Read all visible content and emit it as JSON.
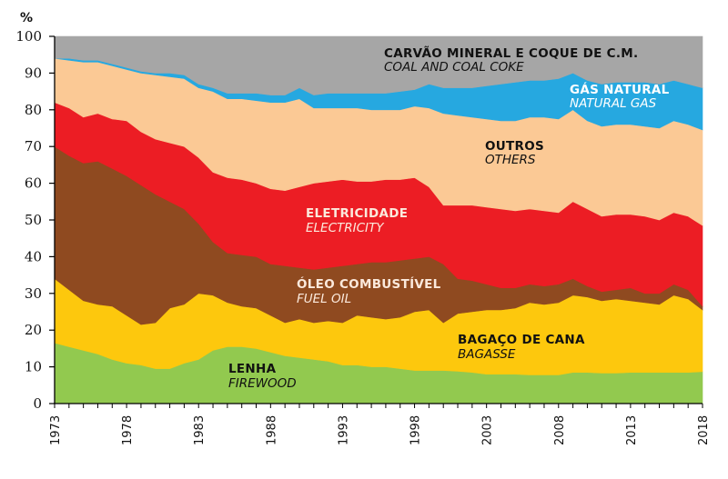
{
  "chart_data": {
    "type": "area",
    "stacked": true,
    "ylabel": "%",
    "ylim": [
      0,
      100
    ],
    "yticks": [
      0,
      10,
      20,
      30,
      40,
      50,
      60,
      70,
      80,
      90,
      100
    ],
    "xlim": [
      1973,
      2018
    ],
    "xticks": [
      1973,
      1978,
      1983,
      1988,
      1993,
      1998,
      2003,
      2008,
      2013,
      2018
    ],
    "x": [
      1973,
      1974,
      1975,
      1976,
      1977,
      1978,
      1979,
      1980,
      1981,
      1982,
      1983,
      1984,
      1985,
      1986,
      1987,
      1988,
      1989,
      1990,
      1991,
      1992,
      1993,
      1994,
      1995,
      1996,
      1997,
      1998,
      1999,
      2000,
      2001,
      2002,
      2003,
      2004,
      2005,
      2006,
      2007,
      2008,
      2009,
      2010,
      2011,
      2012,
      2013,
      2014,
      2015,
      2016,
      2017,
      2018
    ],
    "series": [
      {
        "name": "LENHA",
        "name_en": "FIREWOOD",
        "color": "#92c94f",
        "values": [
          16.5,
          15.5,
          14.5,
          13.5,
          12,
          11,
          10.5,
          9.5,
          9.5,
          11,
          12,
          14.5,
          15.5,
          15.5,
          15,
          14,
          13,
          12.5,
          12,
          11.5,
          10.5,
          10.5,
          10,
          10,
          9.5,
          9,
          9,
          9,
          8.8,
          8.5,
          8,
          8,
          8,
          7.8,
          7.8,
          7.8,
          8.5,
          8.5,
          8.3,
          8.3,
          8.5,
          8.5,
          8.5,
          8.5,
          8.5,
          8.7
        ]
      },
      {
        "name": "BAGAÇO DE CANA",
        "name_en": "BAGASSE",
        "color": "#fdc80d",
        "values": [
          17.5,
          15.5,
          13.5,
          13.5,
          14.5,
          13,
          11,
          12.5,
          16.5,
          16,
          18,
          15,
          12,
          11,
          11,
          10,
          9,
          10.5,
          10,
          11,
          11.5,
          13.5,
          13.5,
          13,
          14,
          16,
          16.5,
          13,
          15.7,
          16.5,
          17.5,
          17.5,
          18,
          19.7,
          19.2,
          19.7,
          21,
          20.5,
          19.7,
          20.2,
          19.5,
          19,
          18.5,
          21,
          20,
          16.8
        ]
      },
      {
        "name": "ÓLEO COMBUSTÍVEL",
        "name_en": "FUEL OIL",
        "color": "#8f4a20",
        "values": [
          36,
          36.5,
          37.5,
          39,
          37.5,
          38,
          38,
          35,
          29,
          26,
          19,
          14.5,
          13.5,
          14,
          14,
          14,
          15.5,
          14,
          14.5,
          14.5,
          15.5,
          14,
          15,
          15.5,
          15.5,
          14.5,
          14.5,
          16,
          9.5,
          8.5,
          7,
          6,
          5.5,
          5,
          5,
          5,
          4.5,
          3,
          2.5,
          2.5,
          3.5,
          2.5,
          3,
          3,
          2.5,
          1
        ]
      },
      {
        "name": "ELETRICIDADE",
        "name_en": "ELECTRICITY",
        "color": "#ec1d24",
        "values": [
          12,
          13,
          12.5,
          13,
          13.5,
          15,
          14.5,
          15,
          16,
          17,
          18,
          19,
          20.5,
          20.5,
          20,
          20.5,
          20.5,
          22,
          23.5,
          23.5,
          23.5,
          22.5,
          22,
          22.5,
          22,
          22,
          19,
          16,
          20,
          20.5,
          21,
          21.5,
          21,
          20.5,
          20.5,
          19.5,
          21,
          21,
          20.5,
          20.5,
          20,
          21,
          20,
          19.5,
          20,
          22
        ]
      },
      {
        "name": "OUTROS",
        "name_en": "OTHERS",
        "color": "#fbc995",
        "values": [
          12,
          13,
          15,
          14,
          14.5,
          14,
          16,
          17.5,
          18,
          18.5,
          19,
          22,
          21.5,
          22,
          22.5,
          23.5,
          24,
          24,
          20.5,
          20,
          19.5,
          20,
          19.5,
          19,
          19,
          19.5,
          21.5,
          25,
          24.5,
          24,
          24,
          24,
          24.5,
          25,
          25.5,
          25.5,
          25,
          24,
          24.5,
          24.5,
          24.5,
          24.5,
          25,
          25,
          25,
          26
        ]
      },
      {
        "name": "GÁS NATURAL",
        "name_en": "NATURAL GAS",
        "color": "#26a8e0",
        "values": [
          0,
          0.5,
          0.5,
          0.5,
          0.5,
          0.5,
          0.5,
          0.5,
          1,
          1,
          1,
          1,
          1.5,
          1.5,
          2,
          2,
          2,
          3,
          3.5,
          4,
          4,
          4,
          4.5,
          4.5,
          5,
          4.5,
          6.5,
          7,
          7.5,
          8,
          9,
          10,
          10.5,
          10,
          10,
          11,
          10,
          11,
          11.5,
          11.5,
          11.5,
          12,
          12,
          11,
          11,
          11.5
        ]
      },
      {
        "name": "CARVÃO MINERAL E COQUE DE C.M.",
        "name_en": "COAL AND COAL COKE",
        "color": "#a6a6a6",
        "values": [
          6,
          6,
          6.5,
          6.5,
          7.5,
          8.5,
          9.5,
          10,
          10,
          10.5,
          13,
          14,
          15.5,
          15.5,
          15.5,
          16,
          16,
          14,
          16,
          15.5,
          15.5,
          15.5,
          15.5,
          15.5,
          15,
          14.5,
          13,
          14,
          14,
          14,
          13.5,
          13,
          12.5,
          12,
          12,
          11.5,
          10,
          12,
          13,
          12.5,
          12.5,
          12.5,
          13,
          12,
          13,
          14
        ]
      }
    ],
    "labels": {
      "coal_pt": "CARVÃO MINERAL E COQUE DE C.M.",
      "coal_en": "COAL AND COAL COKE",
      "gas_pt": "GÁS NATURAL",
      "gas_en": "NATURAL GAS",
      "others_pt": "OUTROS",
      "others_en": "OTHERS",
      "elec_pt": "ELETRICIDADE",
      "elec_en": "ELECTRICITY",
      "fuel_pt": "ÓLEO COMBUSTÍVEL",
      "fuel_en": "FUEL OIL",
      "bagasse_pt": "BAGAÇO DE CANA",
      "bagasse_en": "BAGASSE",
      "firewood_pt": "LENHA",
      "firewood_en": "FIREWOOD"
    },
    "label_colors": {
      "dark": "#111111",
      "light": "#ffffff",
      "light_warm": "#fbe9dc"
    }
  }
}
